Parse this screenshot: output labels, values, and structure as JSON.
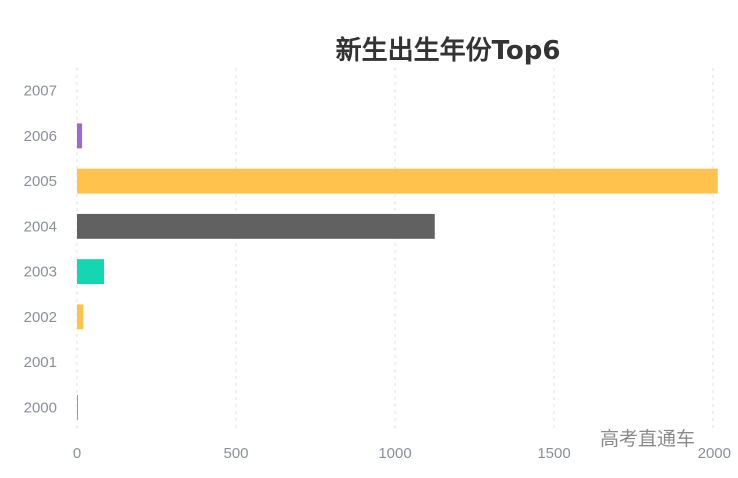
{
  "chart_data": {
    "type": "bar",
    "orientation": "horizontal",
    "title": "新生出生年份Top6",
    "categories": [
      "2000",
      "2001",
      "2002",
      "2003",
      "2004",
      "2005",
      "2006",
      "2007"
    ],
    "values": [
      3,
      0,
      20,
      85,
      1125,
      2015,
      16,
      0
    ],
    "bar_colors": [
      "#2ec7c9",
      "#ffc34d",
      "#ffc34d",
      "#14d6b0",
      "#616161",
      "#ffc34d",
      "#9b6bd3",
      "#ffc34d"
    ],
    "xlim": [
      0,
      2000
    ],
    "xticks": [
      0,
      500,
      1000,
      1500,
      2000
    ],
    "grid": "vertical-dashed",
    "legend": "none",
    "xlabel": "",
    "ylabel": ""
  },
  "watermark": "高考直通车"
}
